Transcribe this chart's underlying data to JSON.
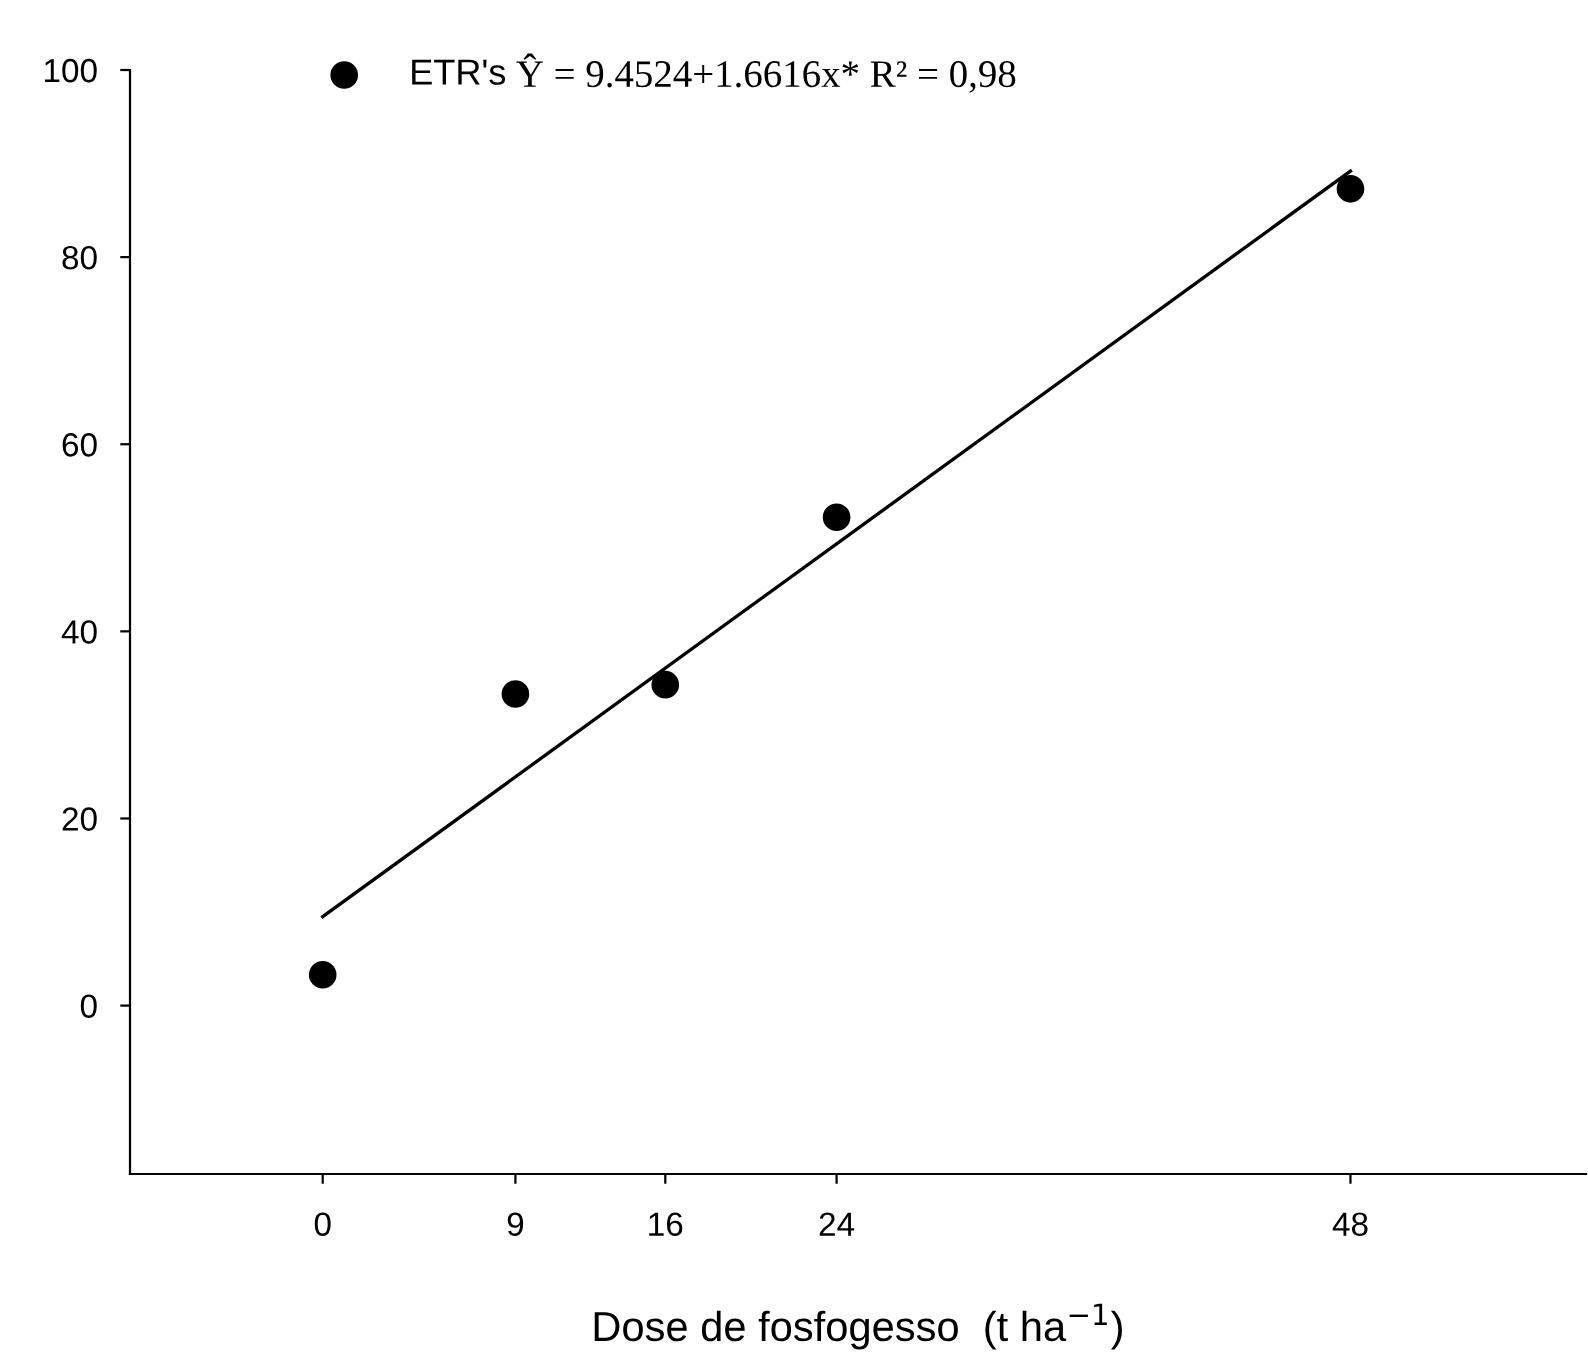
{
  "chart_data": {
    "type": "scatter",
    "xlabel": "Dose de fosfogesso  (t ha$^{−1}$)",
    "series": [
      {
        "name": "ETR's",
        "color": "#000000",
        "marker": "circle",
        "x": [
          0,
          9,
          16,
          24,
          48
        ],
        "values": [
          3.3,
          33.3,
          34.3,
          52.2,
          87.3
        ]
      },
      {
        "type": "line",
        "color": "#000000",
        "x": [
          0,
          48
        ],
        "values": [
          9.5,
          89.2
        ]
      }
    ],
    "annotations": [
      "Ŷ = 9.4524+1.6616x* R² = 0,98"
    ],
    "xlim": [
      -9,
      59
    ],
    "ylim": [
      -18,
      100
    ],
    "xticks": [
      0,
      9,
      16,
      24,
      48
    ],
    "yticks": [
      0,
      20,
      40,
      60,
      80,
      100
    ],
    "legend": "top left",
    "grid": false
  }
}
